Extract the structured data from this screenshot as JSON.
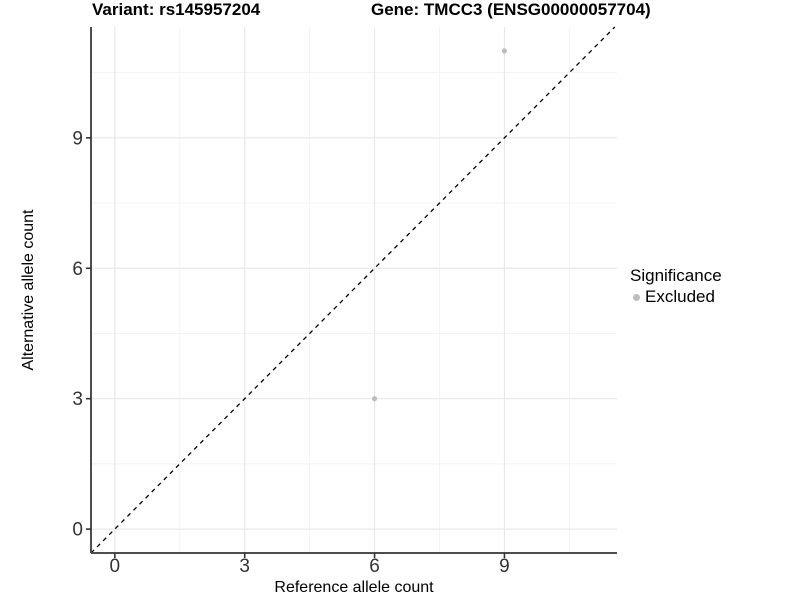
{
  "chart_data": {
    "type": "scatter",
    "title_left": "Variant: rs145957204",
    "title_right": "Gene: TMCC3 (ENSG00000057704)",
    "xlabel": "Reference allele count",
    "ylabel": "Alternative allele count",
    "xlim": [
      -0.55,
      11.6
    ],
    "ylim": [
      -0.55,
      11.55
    ],
    "xticks": [
      0,
      3,
      6,
      9
    ],
    "yticks": [
      0,
      3,
      6,
      9
    ],
    "minor_xticks": [
      1.5,
      4.5,
      7.5,
      10.5
    ],
    "minor_yticks": [
      1.5,
      4.5,
      7.5,
      10.5
    ],
    "grid": true,
    "points": [
      {
        "x": 9,
        "y": 11,
        "series": "Excluded"
      },
      {
        "x": 6,
        "y": 3,
        "series": "Excluded"
      }
    ],
    "reference_line": {
      "slope": 1,
      "intercept": 0,
      "style": "dashed",
      "color": "#000000"
    },
    "legend": {
      "title": "Significance",
      "position": "right",
      "items": [
        {
          "label": "Excluded",
          "color": "#bdbdbd"
        }
      ]
    }
  },
  "colors": {
    "background": "#ffffff",
    "grid_major": "#e8e8e8",
    "grid_minor": "#f3f3f3",
    "axis_line": "#4d4d4d",
    "tick_mark": "#333333",
    "tick_label": "#333333",
    "point": "#bdbdbd",
    "reference_line": "#000000",
    "text": "#000000"
  }
}
